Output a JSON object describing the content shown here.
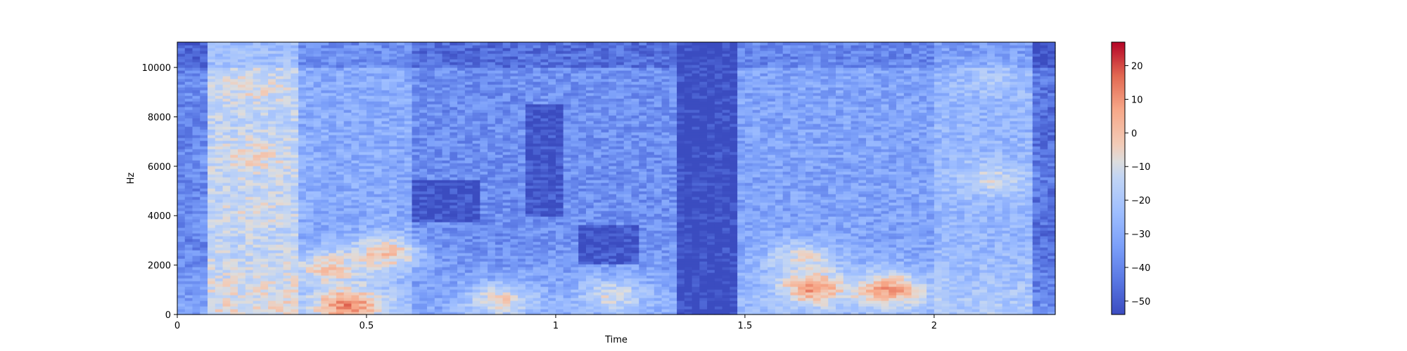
{
  "chart_data": {
    "type": "heatmap",
    "subtype": "spectrogram",
    "xlabel": "Time",
    "ylabel": "Hz",
    "xlim": [
      0,
      2.32
    ],
    "ylim": [
      0,
      11025
    ],
    "x_ticks": [
      0,
      0.5,
      1,
      1.5,
      2
    ],
    "x_tick_labels": [
      "0",
      "0.5",
      "1",
      "1.5",
      "2"
    ],
    "y_ticks": [
      0,
      2000,
      4000,
      6000,
      8000,
      10000
    ],
    "y_tick_labels": [
      "0",
      "2000",
      "4000",
      "6000",
      "8000",
      "10000"
    ],
    "colormap": "coolwarm",
    "colorbar": {
      "range": [
        -54,
        27
      ],
      "ticks": [
        20,
        10,
        0,
        -10,
        -20,
        -30,
        -40,
        -50
      ],
      "tick_labels": [
        "20",
        "10",
        "0",
        "−10",
        "−20",
        "−30",
        "−40",
        "−50"
      ]
    },
    "segments": [
      {
        "t0": 0.0,
        "t1": 0.07,
        "level": -40
      },
      {
        "t0": 0.07,
        "t1": 0.32,
        "level": -15
      },
      {
        "t0": 0.32,
        "t1": 0.62,
        "level": -30
      },
      {
        "t0": 0.62,
        "t1": 0.9,
        "level": -38
      },
      {
        "t0": 0.9,
        "t1": 1.32,
        "level": -37
      },
      {
        "t0": 1.32,
        "t1": 1.48,
        "level": -54
      },
      {
        "t0": 1.48,
        "t1": 2.0,
        "level": -32
      },
      {
        "t0": 2.0,
        "t1": 2.25,
        "level": -26
      },
      {
        "t0": 2.25,
        "t1": 2.32,
        "level": -45
      }
    ],
    "hotspots": [
      {
        "t": 0.2,
        "f": 9200,
        "level": -8
      },
      {
        "t": 0.2,
        "f": 6400,
        "level": -6
      },
      {
        "t": 0.2,
        "f": 4200,
        "level": -10
      },
      {
        "t": 0.45,
        "f": 400,
        "level": 12
      },
      {
        "t": 0.55,
        "f": 2500,
        "level": 0
      },
      {
        "t": 0.4,
        "f": 1900,
        "level": -2
      },
      {
        "t": 0.85,
        "f": 600,
        "level": -5
      },
      {
        "t": 1.15,
        "f": 800,
        "level": -10
      },
      {
        "t": 1.68,
        "f": 1100,
        "level": 9
      },
      {
        "t": 1.88,
        "f": 1000,
        "level": 8
      },
      {
        "t": 1.65,
        "f": 2300,
        "level": -8
      },
      {
        "t": 2.15,
        "f": 5500,
        "level": -12
      },
      {
        "t": 2.15,
        "f": 9500,
        "level": -20
      }
    ],
    "cold_regions": [
      {
        "t0": 0.92,
        "t1": 1.02,
        "f0": 4000,
        "f1": 8500
      },
      {
        "t0": 1.06,
        "t1": 1.22,
        "f0": 2000,
        "f1": 3600
      },
      {
        "t0": 0.62,
        "t1": 0.8,
        "f0": 3800,
        "f1": 5400
      }
    ]
  }
}
